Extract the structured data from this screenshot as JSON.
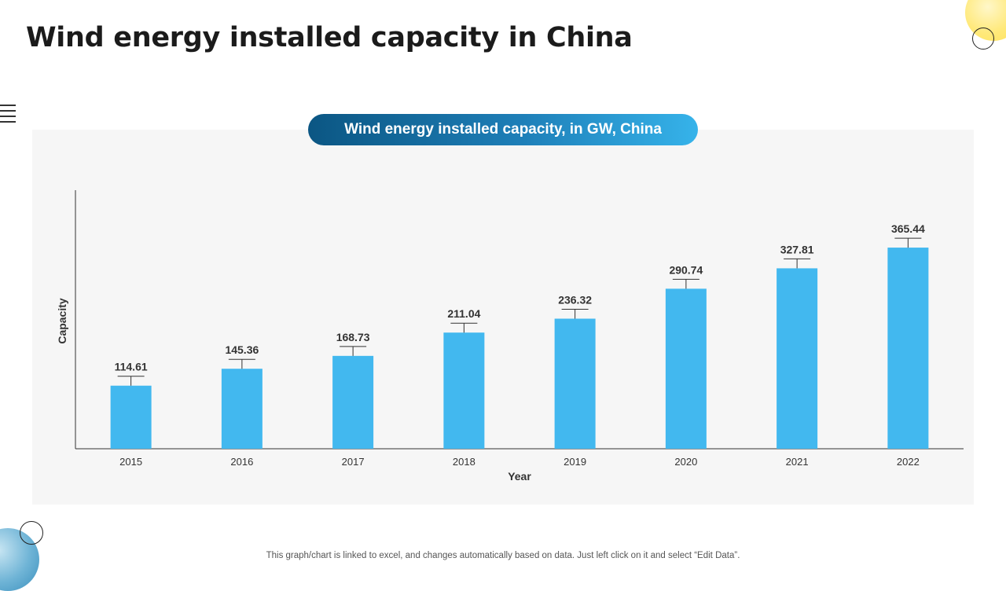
{
  "slide": {
    "title": "Wind energy installed capacity in China",
    "footnote": "This graph/chart is linked to excel, and changes automatically based on data. Just left click on it and select “Edit Data”."
  },
  "colors": {
    "bar": "#42b8ef",
    "pill_start": "#0b5683",
    "pill_end": "#36b3ea",
    "panel": "#f6f6f6",
    "text": "#333333"
  },
  "chart_data": {
    "type": "bar",
    "title": "Wind energy installed capacity, in GW, China",
    "xlabel": "Year",
    "ylabel": "Capacity",
    "categories": [
      "2015",
      "2016",
      "2017",
      "2018",
      "2019",
      "2020",
      "2021",
      "2022"
    ],
    "values": [
      114.61,
      145.36,
      168.73,
      211.04,
      236.32,
      290.74,
      327.81,
      365.44
    ],
    "ylim": [
      0,
      400
    ],
    "grid": false,
    "legend": "none",
    "data_labels": true
  }
}
